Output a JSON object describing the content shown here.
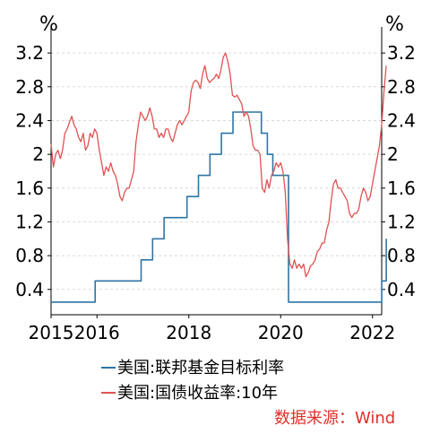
{
  "chart_data": {
    "type": "line",
    "y_unit_left": "%",
    "y_unit_right": "%",
    "xlim": [
      2015.0,
      2022.2
    ],
    "ylim": [
      0.1,
      3.35
    ],
    "x_ticks": [
      {
        "value": 2015,
        "label": "2015"
      },
      {
        "value": 2016,
        "label": "2016"
      },
      {
        "value": 2018,
        "label": "2018"
      },
      {
        "value": 2020,
        "label": "2020"
      },
      {
        "value": 2022,
        "label": "2022"
      }
    ],
    "y_ticks": [
      {
        "value": 3.2,
        "label": "3.2"
      },
      {
        "value": 2.8,
        "label": "2.8"
      },
      {
        "value": 2.4,
        "label": "2.4"
      },
      {
        "value": 2.0,
        "label": "2"
      },
      {
        "value": 1.6,
        "label": "1.6"
      },
      {
        "value": 1.2,
        "label": "1.2"
      },
      {
        "value": 0.8,
        "label": "0.8"
      },
      {
        "value": 0.4,
        "label": "0.4"
      }
    ],
    "grid": "horizontal dashed",
    "legend_position": "bottom",
    "series": [
      {
        "name": "美国:联邦基金目标利率",
        "color": "#2e75a6",
        "style": "step",
        "points": [
          [
            2015.0,
            0.25
          ],
          [
            2015.96,
            0.25
          ],
          [
            2015.96,
            0.5
          ],
          [
            2016.96,
            0.5
          ],
          [
            2016.96,
            0.75
          ],
          [
            2017.21,
            0.75
          ],
          [
            2017.21,
            1.0
          ],
          [
            2017.46,
            1.0
          ],
          [
            2017.46,
            1.25
          ],
          [
            2017.96,
            1.25
          ],
          [
            2017.96,
            1.5
          ],
          [
            2018.21,
            1.5
          ],
          [
            2018.21,
            1.75
          ],
          [
            2018.46,
            1.75
          ],
          [
            2018.46,
            2.0
          ],
          [
            2018.71,
            2.0
          ],
          [
            2018.71,
            2.25
          ],
          [
            2018.96,
            2.25
          ],
          [
            2018.96,
            2.5
          ],
          [
            2019.58,
            2.5
          ],
          [
            2019.58,
            2.25
          ],
          [
            2019.71,
            2.25
          ],
          [
            2019.71,
            2.0
          ],
          [
            2019.83,
            2.0
          ],
          [
            2019.83,
            1.75
          ],
          [
            2020.17,
            1.75
          ],
          [
            2020.17,
            0.25
          ],
          [
            2022.2,
            0.25
          ],
          [
            2022.2,
            0.5
          ],
          [
            2022.3,
            0.5
          ],
          [
            2022.3,
            1.0
          ]
        ]
      },
      {
        "name": "美国:国债收益率:10年",
        "color": "#e05252",
        "style": "line",
        "points": [
          [
            2015.0,
            2.12
          ],
          [
            2015.05,
            1.85
          ],
          [
            2015.1,
            2.0
          ],
          [
            2015.15,
            2.05
          ],
          [
            2015.2,
            1.95
          ],
          [
            2015.25,
            2.05
          ],
          [
            2015.3,
            2.25
          ],
          [
            2015.35,
            2.3
          ],
          [
            2015.4,
            2.38
          ],
          [
            2015.45,
            2.45
          ],
          [
            2015.5,
            2.35
          ],
          [
            2015.55,
            2.3
          ],
          [
            2015.6,
            2.2
          ],
          [
            2015.65,
            2.15
          ],
          [
            2015.7,
            2.25
          ],
          [
            2015.75,
            2.05
          ],
          [
            2015.8,
            2.1
          ],
          [
            2015.85,
            2.25
          ],
          [
            2015.9,
            2.2
          ],
          [
            2015.95,
            2.3
          ],
          [
            2016.0,
            2.25
          ],
          [
            2016.05,
            2.05
          ],
          [
            2016.1,
            1.9
          ],
          [
            2016.15,
            1.75
          ],
          [
            2016.2,
            1.85
          ],
          [
            2016.25,
            1.8
          ],
          [
            2016.3,
            1.9
          ],
          [
            2016.35,
            1.8
          ],
          [
            2016.4,
            1.75
          ],
          [
            2016.45,
            1.65
          ],
          [
            2016.5,
            1.5
          ],
          [
            2016.55,
            1.45
          ],
          [
            2016.6,
            1.55
          ],
          [
            2016.65,
            1.6
          ],
          [
            2016.7,
            1.6
          ],
          [
            2016.75,
            1.7
          ],
          [
            2016.8,
            1.8
          ],
          [
            2016.85,
            2.15
          ],
          [
            2016.9,
            2.35
          ],
          [
            2016.95,
            2.5
          ],
          [
            2017.0,
            2.45
          ],
          [
            2017.05,
            2.4
          ],
          [
            2017.1,
            2.45
          ],
          [
            2017.15,
            2.55
          ],
          [
            2017.2,
            2.45
          ],
          [
            2017.25,
            2.3
          ],
          [
            2017.3,
            2.3
          ],
          [
            2017.35,
            2.2
          ],
          [
            2017.4,
            2.25
          ],
          [
            2017.45,
            2.2
          ],
          [
            2017.5,
            2.3
          ],
          [
            2017.55,
            2.3
          ],
          [
            2017.6,
            2.2
          ],
          [
            2017.65,
            2.15
          ],
          [
            2017.7,
            2.25
          ],
          [
            2017.75,
            2.35
          ],
          [
            2017.8,
            2.4
          ],
          [
            2017.85,
            2.35
          ],
          [
            2017.9,
            2.4
          ],
          [
            2017.95,
            2.45
          ],
          [
            2018.0,
            2.5
          ],
          [
            2018.05,
            2.75
          ],
          [
            2018.1,
            2.85
          ],
          [
            2018.15,
            2.88
          ],
          [
            2018.2,
            2.85
          ],
          [
            2018.25,
            2.78
          ],
          [
            2018.3,
            2.95
          ],
          [
            2018.35,
            3.05
          ],
          [
            2018.4,
            2.9
          ],
          [
            2018.45,
            2.85
          ],
          [
            2018.5,
            2.88
          ],
          [
            2018.55,
            2.9
          ],
          [
            2018.6,
            2.95
          ],
          [
            2018.65,
            2.9
          ],
          [
            2018.7,
            3.0
          ],
          [
            2018.75,
            3.15
          ],
          [
            2018.8,
            3.2
          ],
          [
            2018.85,
            3.1
          ],
          [
            2018.9,
            2.95
          ],
          [
            2018.95,
            2.7
          ],
          [
            2019.0,
            2.68
          ],
          [
            2019.05,
            2.7
          ],
          [
            2019.1,
            2.65
          ],
          [
            2019.15,
            2.6
          ],
          [
            2019.2,
            2.45
          ],
          [
            2019.25,
            2.5
          ],
          [
            2019.3,
            2.45
          ],
          [
            2019.35,
            2.3
          ],
          [
            2019.4,
            2.1
          ],
          [
            2019.45,
            2.05
          ],
          [
            2019.5,
            2.05
          ],
          [
            2019.55,
            2.0
          ],
          [
            2019.6,
            1.6
          ],
          [
            2019.65,
            1.55
          ],
          [
            2019.7,
            1.7
          ],
          [
            2019.75,
            1.6
          ],
          [
            2019.8,
            1.75
          ],
          [
            2019.85,
            1.8
          ],
          [
            2019.9,
            1.9
          ],
          [
            2019.95,
            1.85
          ],
          [
            2020.0,
            1.9
          ],
          [
            2020.05,
            1.8
          ],
          [
            2020.1,
            1.55
          ],
          [
            2020.15,
            1.0
          ],
          [
            2020.2,
            0.7
          ],
          [
            2020.25,
            0.65
          ],
          [
            2020.3,
            0.75
          ],
          [
            2020.35,
            0.65
          ],
          [
            2020.4,
            0.7
          ],
          [
            2020.45,
            0.65
          ],
          [
            2020.5,
            0.7
          ],
          [
            2020.55,
            0.55
          ],
          [
            2020.6,
            0.6
          ],
          [
            2020.65,
            0.68
          ],
          [
            2020.7,
            0.7
          ],
          [
            2020.75,
            0.75
          ],
          [
            2020.8,
            0.85
          ],
          [
            2020.85,
            0.88
          ],
          [
            2020.9,
            0.95
          ],
          [
            2020.95,
            0.95
          ],
          [
            2021.0,
            1.1
          ],
          [
            2021.05,
            1.2
          ],
          [
            2021.1,
            1.45
          ],
          [
            2021.15,
            1.65
          ],
          [
            2021.2,
            1.7
          ],
          [
            2021.25,
            1.6
          ],
          [
            2021.3,
            1.6
          ],
          [
            2021.35,
            1.55
          ],
          [
            2021.4,
            1.5
          ],
          [
            2021.45,
            1.45
          ],
          [
            2021.5,
            1.3
          ],
          [
            2021.55,
            1.25
          ],
          [
            2021.6,
            1.3
          ],
          [
            2021.65,
            1.3
          ],
          [
            2021.7,
            1.35
          ],
          [
            2021.75,
            1.5
          ],
          [
            2021.8,
            1.6
          ],
          [
            2021.85,
            1.55
          ],
          [
            2021.9,
            1.45
          ],
          [
            2021.95,
            1.5
          ],
          [
            2022.0,
            1.65
          ],
          [
            2022.05,
            1.8
          ],
          [
            2022.1,
            1.95
          ],
          [
            2022.15,
            2.1
          ],
          [
            2022.2,
            2.35
          ],
          [
            2022.25,
            2.75
          ],
          [
            2022.3,
            3.05
          ]
        ]
      }
    ],
    "legend": [
      {
        "label": "美国:联邦基金目标利率",
        "color": "#2e75a6"
      },
      {
        "label": "美国:国债收益率:10年",
        "color": "#e05252"
      }
    ],
    "source_note": "数据来源：Wind"
  }
}
